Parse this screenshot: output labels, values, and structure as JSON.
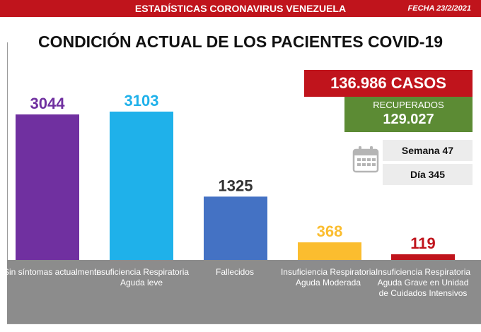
{
  "header": {
    "title": "ESTADÍSTICAS CORONAVIRUS VENEZUELA",
    "date": "FECHA 23/2/2021"
  },
  "main_title": "CONDICIÓN ACTUAL DE LOS PACIENTES COVID-19",
  "summary": {
    "cases": "136.986 CASOS",
    "recovered_label": "RECUPERADOS",
    "recovered_value": "129.027",
    "week": "Semana 47",
    "day": "Día 345"
  },
  "icons": {
    "calendar": "calendar-icon"
  },
  "colors": {
    "header_red": "#c0141c",
    "recovered_green": "#5c8b34",
    "label_strip_gray": "#8c8c8c"
  },
  "chart_data": {
    "type": "bar",
    "title": "CONDICIÓN ACTUAL DE LOS PACIENTES COVID-19",
    "xlabel": "",
    "ylabel": "",
    "categories": [
      "Sin síntomas actualmente",
      "Insuficiencia Respiratoria Aguda leve",
      "Fallecidos",
      "Insuficiencia Respiratoria Aguda Moderada",
      "Insuficiencia Respiratoria Aguda Grave en Unidad de Cuidados Intensivos"
    ],
    "values": [
      3044,
      3103,
      1325,
      368,
      119
    ],
    "data_labels": [
      "3044",
      "3103",
      "1325",
      "368",
      "119"
    ],
    "colors": [
      "#7030a0",
      "#1fb1ea",
      "#4472c4",
      "#fbbd2f",
      "#c0141c"
    ],
    "label_colors": [
      "#7030a0",
      "#1fb1ea",
      "#333333",
      "#fbbd2f",
      "#c0141c"
    ],
    "grid": false,
    "legend": "none",
    "ylim": [
      0,
      3103
    ]
  }
}
